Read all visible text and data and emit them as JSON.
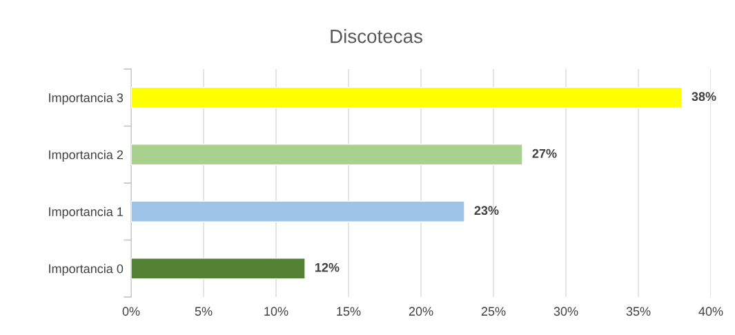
{
  "chart_data": {
    "type": "bar",
    "orientation": "horizontal",
    "title": "Discotecas",
    "categories": [
      "Importancia 3",
      "Importancia 2",
      "Importancia 1",
      "Importancia 0"
    ],
    "values": [
      38,
      27,
      23,
      12
    ],
    "colors": [
      "#ffff00",
      "#a9d18e",
      "#9dc3e6",
      "#548235"
    ],
    "value_labels": [
      "38%",
      "27%",
      "23%",
      "12%"
    ],
    "xlim": [
      0,
      40
    ],
    "xticks": [
      {
        "value": 0,
        "label": "0%"
      },
      {
        "value": 5,
        "label": "5%"
      },
      {
        "value": 10,
        "label": "10%"
      },
      {
        "value": 15,
        "label": "15%"
      },
      {
        "value": 20,
        "label": "20%"
      },
      {
        "value": 25,
        "label": "25%"
      },
      {
        "value": 30,
        "label": "30%"
      },
      {
        "value": 35,
        "label": "35%"
      },
      {
        "value": 40,
        "label": "40%"
      }
    ],
    "grid": "x",
    "legend": false
  }
}
